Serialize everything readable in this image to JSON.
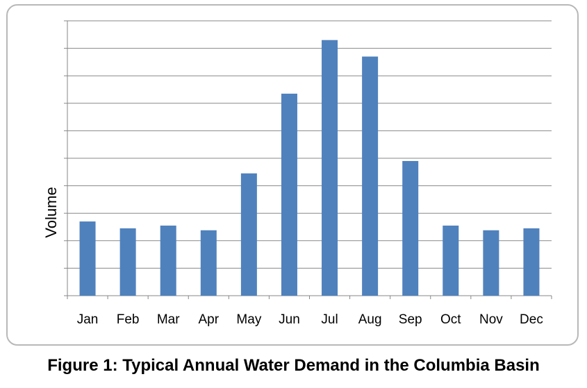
{
  "chart_data": {
    "type": "bar",
    "title": "",
    "xlabel": "",
    "ylabel": "Volume",
    "categories": [
      "Jan",
      "Feb",
      "Mar",
      "Apr",
      "May",
      "Jun",
      "Jul",
      "Aug",
      "Sep",
      "Oct",
      "Nov",
      "Dec"
    ],
    "values": [
      2.7,
      2.45,
      2.55,
      2.38,
      4.45,
      7.35,
      9.3,
      8.7,
      4.9,
      2.55,
      2.38,
      2.45
    ],
    "ylim": [
      0,
      10
    ],
    "grid": true,
    "bar_color": "#4f81bd",
    "caption": "Figure 1: Typical Annual Water Demand in the Columbia Basin"
  }
}
